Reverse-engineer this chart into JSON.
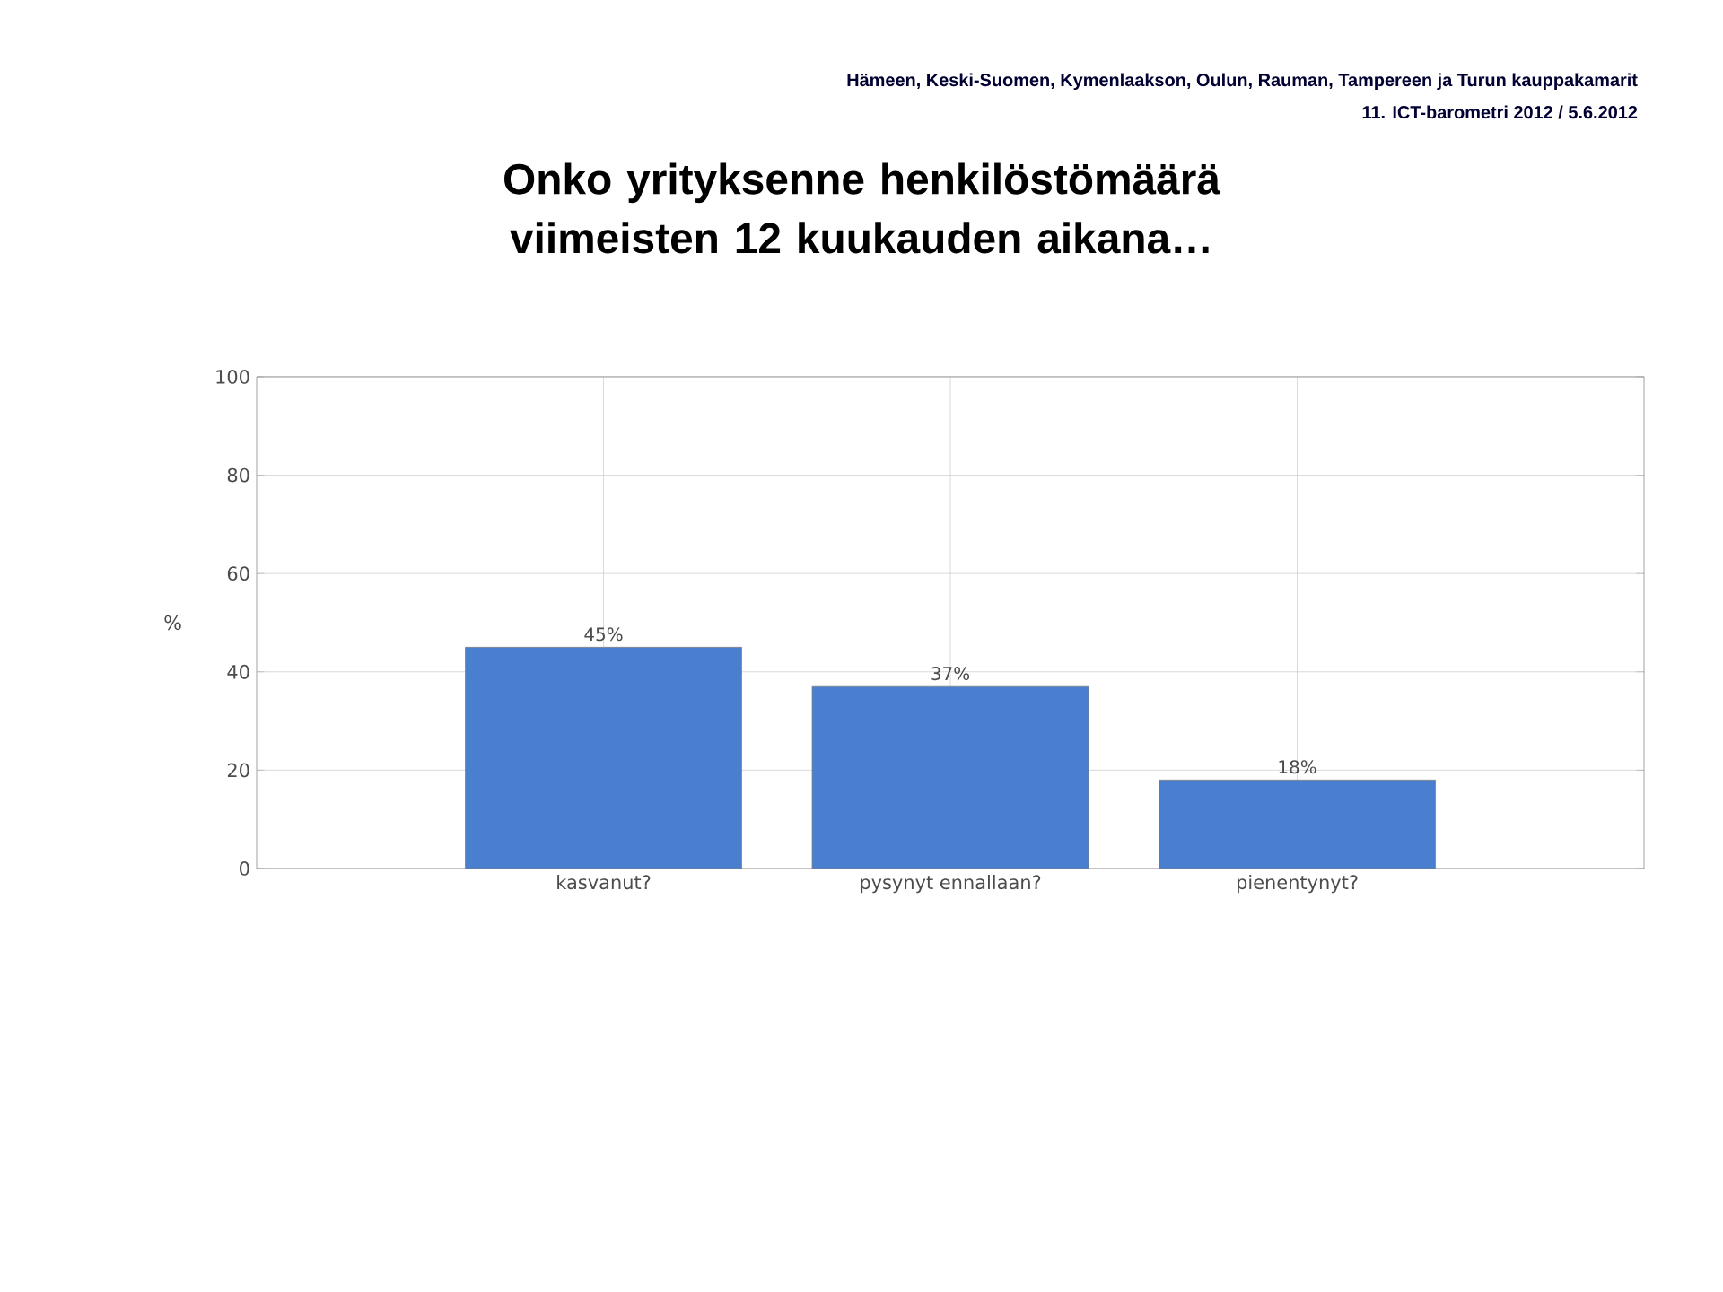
{
  "chart_data": {
    "type": "bar",
    "title": "Onko yrityksenne henkilöstömäärä viimeisten 12 kuukauden aikana…",
    "annotations": [
      "Hämeen, Keski-Suomen, Kymenlaakson, Oulun, Rauman, Tampereen ja Turun kauppakamarit",
      "11. ICT-barometri 2012 / 5.6.2012"
    ],
    "ylabel": "%",
    "categories": [
      "kasvanut?",
      "pysynyt ennallaan?",
      "pienentynyt?"
    ],
    "values": [
      45,
      37,
      18
    ],
    "value_labels": [
      "45%",
      "37%",
      "18%"
    ],
    "color": "#4a7fcf",
    "ylim": [
      0,
      100
    ],
    "yticks": [
      0,
      20,
      40,
      60,
      80,
      100
    ],
    "grid": true
  }
}
